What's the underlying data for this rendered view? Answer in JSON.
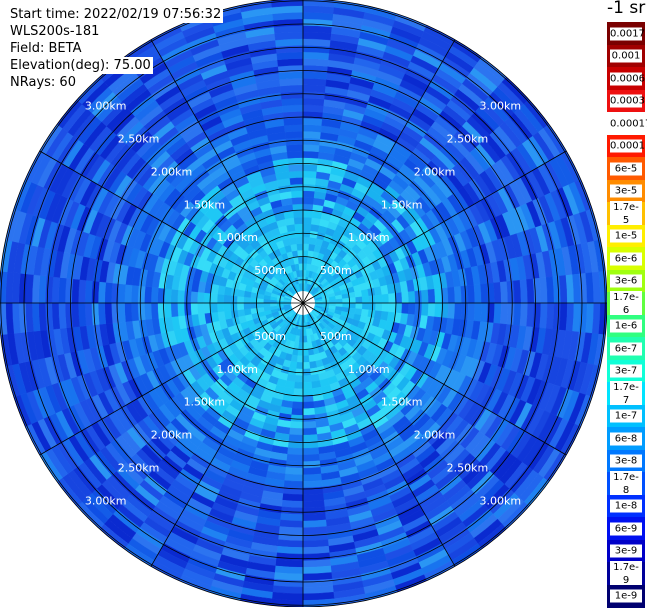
{
  "info": {
    "start_time": "Start time: 2022/02/19 07:56:32",
    "device": "WLS200s-181",
    "field": "Field: BETA",
    "elevation": "Elevation(deg): 75.00",
    "nrays": "NRays: 60"
  },
  "unit_label": "-1 sr",
  "ring_labels": [
    "500m",
    "1.00km",
    "1.50km",
    "2.00km",
    "2.50km",
    "3.00km"
  ],
  "colorbar": {
    "labels": [
      "0.0017",
      "0.001",
      "0.0006",
      "0.0003",
      "0.00017",
      "0.0001",
      "6e-5",
      "3e-5",
      "1.7e-5",
      "1e-5",
      "6e-6",
      "3e-6",
      "1.7e-6",
      "1e-6",
      "6e-7",
      "3e-7",
      "1.7e-7",
      "1e-7",
      "6e-8",
      "3e-8",
      "1.7e-8",
      "1e-8",
      "6e-9",
      "3e-9",
      "1.7e-9",
      "1e-9"
    ],
    "colors": [
      "#7a0000",
      "#a00000",
      "#c80000",
      "#ee1010",
      "#ffffff",
      "#ff1a00",
      "#ff5a00",
      "#ff8c00",
      "#ffc000",
      "#ffee00",
      "#d8ff00",
      "#a0ff10",
      "#60ff40",
      "#30ff80",
      "#20ffb0",
      "#10ffd8",
      "#00e4ff",
      "#00c0ff",
      "#009cff",
      "#0078ff",
      "#0050ff",
      "#0030ff",
      "#0010f0",
      "#0000c8",
      "#00009a",
      "#000070"
    ]
  },
  "colors": {
    "inner": "#1ec8f5",
    "mid": "#1a70ee",
    "outer": "#1745e0"
  }
}
